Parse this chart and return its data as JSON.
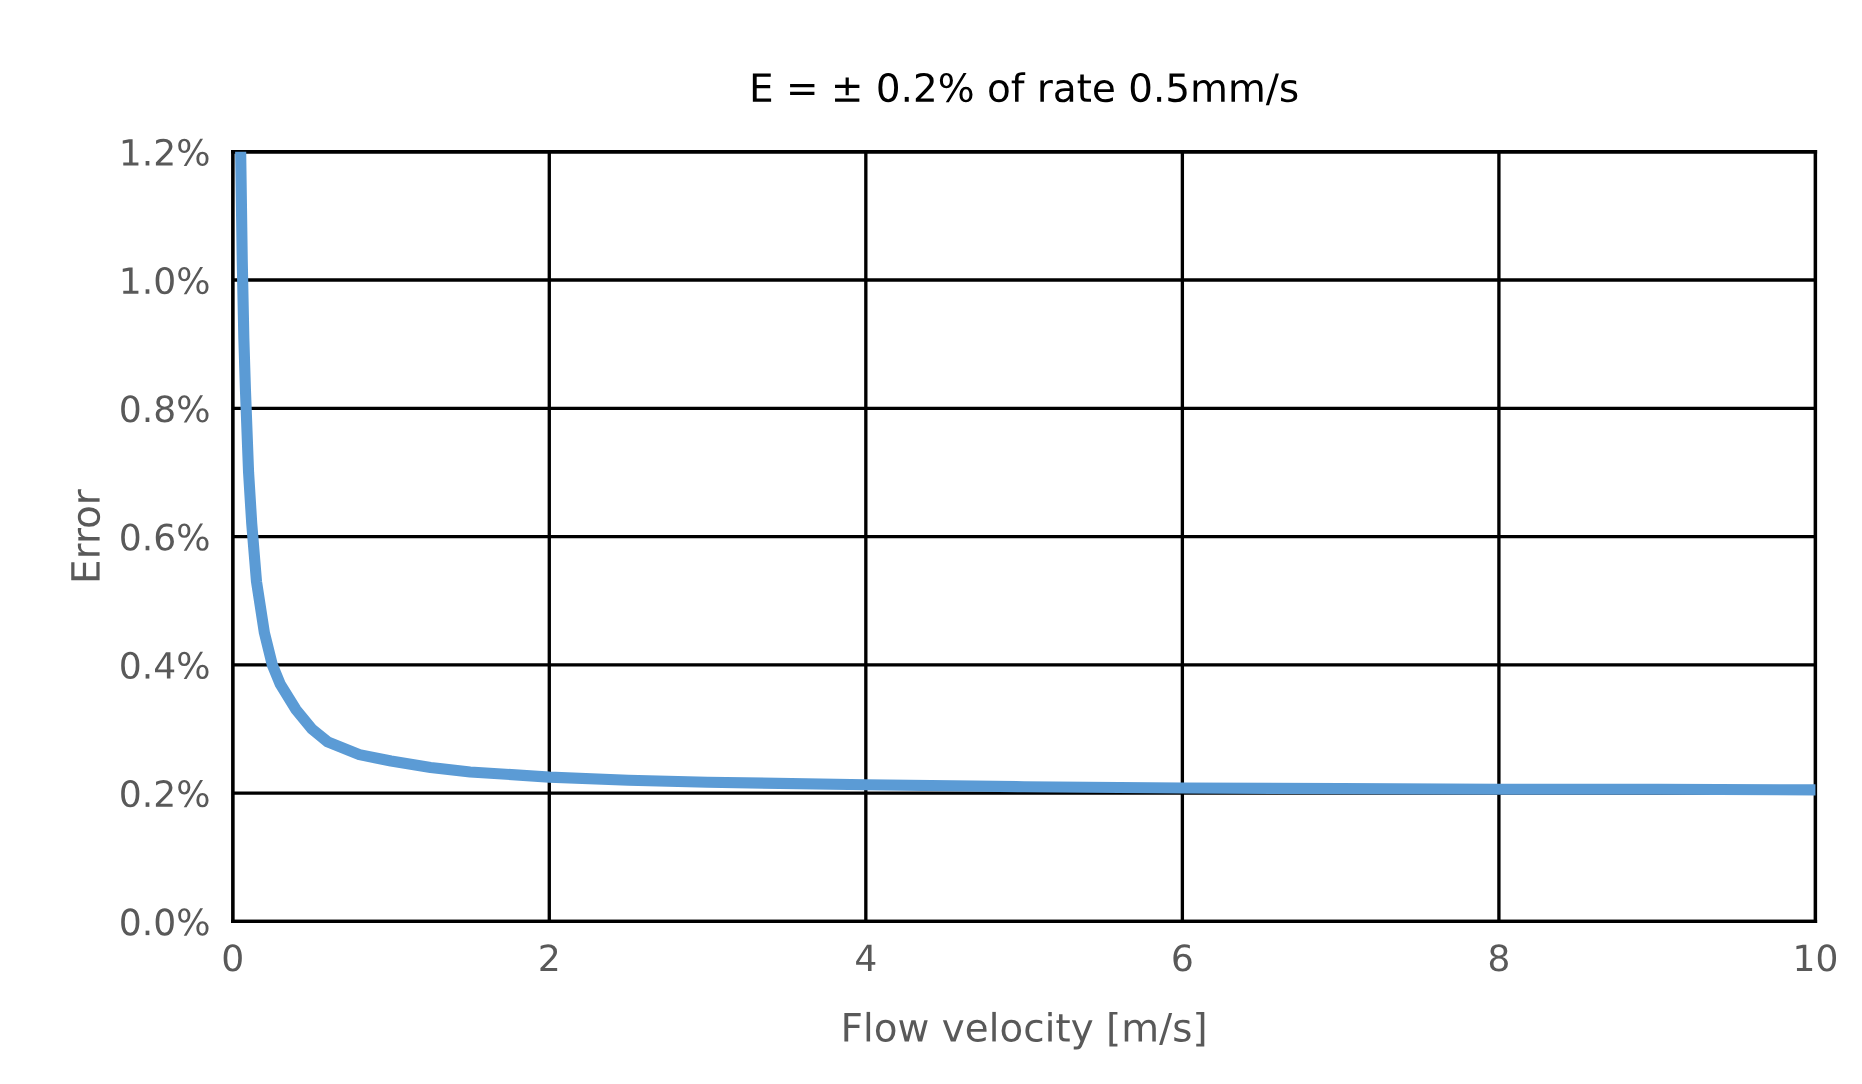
{
  "chart_data": {
    "type": "line",
    "title": "E = ± 0.2% of rate 0.5mm/s",
    "xlabel": "Flow velocity [m/s]",
    "ylabel": "Error",
    "series": [
      {
        "color": "#5b9bd5",
        "x": [
          0.05,
          0.06,
          0.07,
          0.08,
          0.1,
          0.12,
          0.15,
          0.2,
          0.25,
          0.3,
          0.4,
          0.5,
          0.6,
          0.8,
          1,
          1.25,
          1.5,
          2,
          2.5,
          3,
          4,
          5,
          6,
          7,
          8,
          9,
          10
        ],
        "values": [
          1.2,
          1.03,
          0.91,
          0.83,
          0.7,
          0.62,
          0.53,
          0.45,
          0.4,
          0.37,
          0.33,
          0.3,
          0.28,
          0.26,
          0.25,
          0.24,
          0.233,
          0.225,
          0.22,
          0.217,
          0.213,
          0.21,
          0.208,
          0.207,
          0.206,
          0.206,
          0.205
        ]
      }
    ],
    "xlim": [
      0,
      10
    ],
    "xticks": [
      0,
      2,
      4,
      6,
      8,
      10
    ],
    "ylim": [
      0,
      1.2
    ],
    "yticks": [
      {
        "value": 0,
        "label": "0.0%"
      },
      {
        "value": 0.2,
        "label": "0.2%"
      },
      {
        "value": 0.4,
        "label": "0.4%"
      },
      {
        "value": 0.6,
        "label": "0.6%"
      },
      {
        "value": 0.8,
        "label": "0.8%"
      },
      {
        "value": 1.0,
        "label": "1.0%"
      },
      {
        "value": 1.2,
        "label": "1.2%"
      }
    ],
    "grid": true,
    "marker": "none",
    "line_style": "solid"
  }
}
